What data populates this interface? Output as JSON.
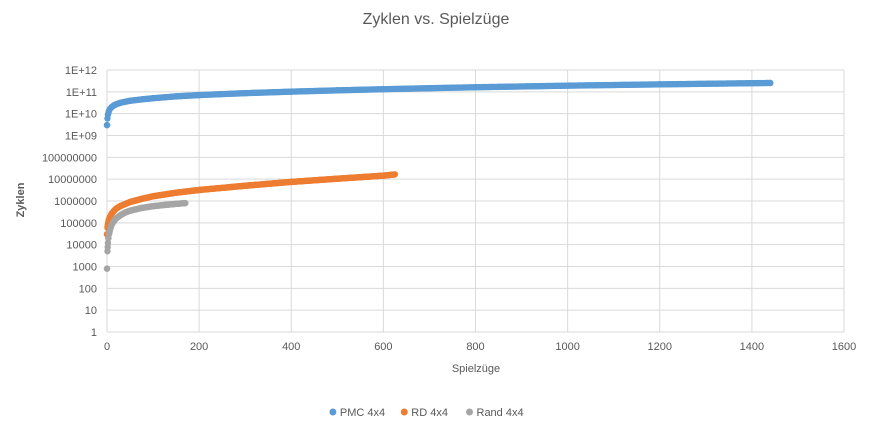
{
  "chart_data": {
    "type": "scatter",
    "title": "Zyklen vs. Spielzüge",
    "xlabel": "Spielzüge",
    "ylabel": "Zyklen",
    "xlim": [
      0,
      1600
    ],
    "x_ticks": [
      "0",
      "200",
      "400",
      "600",
      "800",
      "1000",
      "1200",
      "1400",
      "1600"
    ],
    "y_scale": "log",
    "ylim": [
      1,
      1000000000000
    ],
    "y_ticks": [
      "1",
      "10",
      "100",
      "1000",
      "10000",
      "100000",
      "1000000",
      "10000000",
      "100000000",
      "1E+09",
      "1E+10",
      "1E+11",
      "1E+12"
    ],
    "grid": true,
    "legend_position": "bottom",
    "series": [
      {
        "name": "PMC 4x4",
        "color": "#5B9BD5",
        "x": [
          0,
          1,
          2,
          4,
          6,
          10,
          15,
          20,
          30,
          50,
          75,
          100,
          150,
          200,
          300,
          400,
          500,
          600,
          700,
          800,
          1000,
          1200,
          1440
        ],
        "y": [
          3000000000,
          6000000000,
          9000000000,
          13000000000,
          16000000000,
          20000000000,
          24000000000,
          27000000000,
          32000000000,
          39000000000,
          45000000000,
          51000000000,
          62000000000,
          71000000000,
          87000000000,
          102000000000,
          117000000000,
          132000000000,
          147000000000,
          162000000000,
          192000000000,
          220000000000,
          255000000000
        ]
      },
      {
        "name": "RD 4x4",
        "color": "#ED7D31",
        "x": [
          0,
          1,
          2,
          4,
          6,
          10,
          15,
          20,
          30,
          50,
          75,
          100,
          150,
          200,
          300,
          400,
          500,
          600,
          625
        ],
        "y": [
          30000,
          60000,
          90000,
          140000,
          180000,
          260000,
          350000,
          450000,
          600000,
          900000,
          1250000,
          1650000,
          2400000,
          3200000,
          5000000,
          7500000,
          10500000,
          14500000,
          16500000
        ]
      },
      {
        "name": "Rand 4x4",
        "color": "#A5A5A5",
        "x": [
          0,
          1,
          2,
          3,
          5,
          8,
          10,
          15,
          20,
          30,
          40,
          50,
          75,
          100,
          125,
          150,
          170
        ],
        "y": [
          800,
          5000,
          12000,
          20000,
          35000,
          60000,
          80000,
          120000,
          160000,
          230000,
          300000,
          360000,
          480000,
          580000,
          660000,
          740000,
          800000
        ]
      }
    ]
  }
}
